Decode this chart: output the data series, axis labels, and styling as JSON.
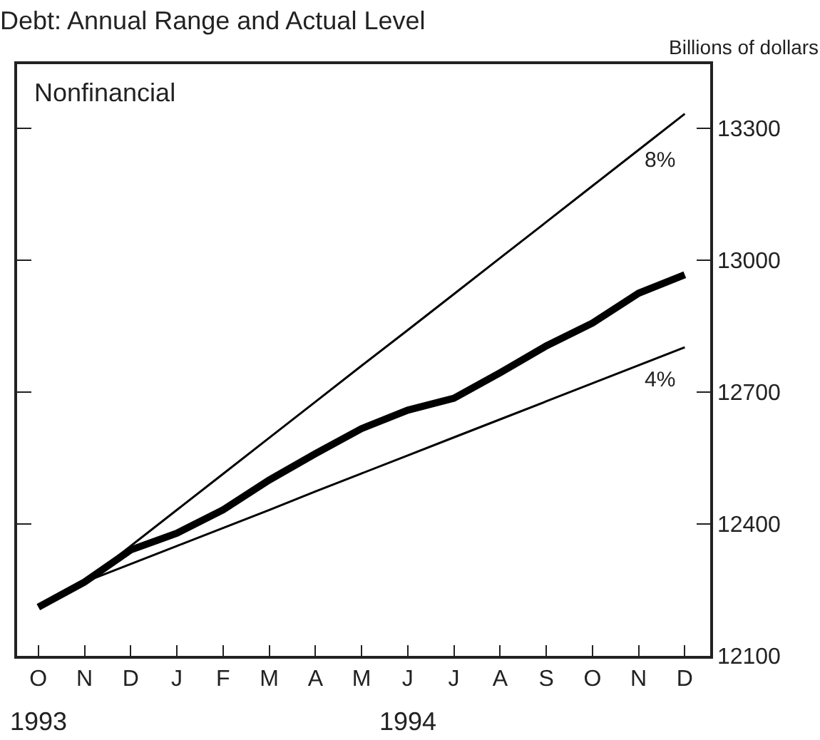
{
  "chart_data": {
    "type": "line",
    "title": "Debt: Annual Range and Actual Level",
    "ylabel": "Billions of dollars",
    "categories": [
      "O",
      "N",
      "D",
      "J",
      "F",
      "M",
      "A",
      "M",
      "J",
      "J",
      "A",
      "S",
      "O",
      "N",
      "D"
    ],
    "series": [
      {
        "color": "#000000",
        "values": [
          12211,
          12268,
          12341,
          12379,
          12432,
          12500,
          12560,
          12617,
          12659,
          12686,
          12744,
          12805,
          12857,
          12925,
          12967
        ]
      },
      {
        "name": "8%",
        "color": "#000000",
        "values": [
          null,
          12268,
          12350,
          12432,
          12514,
          12596,
          12678,
          12760,
          12841,
          12923,
          13005,
          13087,
          13169,
          13251,
          13333
        ]
      },
      {
        "name": "4%",
        "color": "#000000",
        "values": [
          null,
          12268,
          12309,
          12350,
          12391,
          12432,
          12474,
          12515,
          12556,
          12597,
          12638,
          12679,
          12720,
          12761,
          12802
        ]
      }
    ],
    "annotations": [
      "Nonfinancial",
      "1993",
      "1994"
    ],
    "ylim": [
      12100,
      13446
    ],
    "yticks": [
      12100,
      12400,
      12700,
      13000,
      13300
    ],
    "legend": false,
    "marker": "none",
    "line_style": "solid"
  }
}
